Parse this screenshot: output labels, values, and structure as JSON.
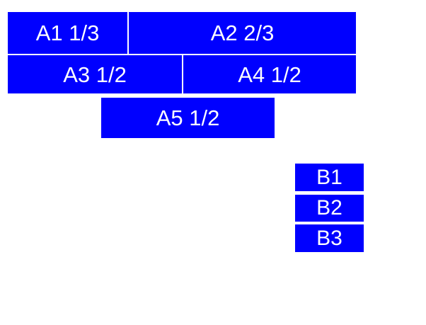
{
  "page": {
    "background_color": "#ffffff"
  },
  "colors": {
    "box_fill": "#0000ff",
    "box_text": "#ffffff"
  },
  "group_a": {
    "row1": {
      "a1": {
        "label": "A1 1/3"
      },
      "a2": {
        "label": "A2 2/3"
      }
    },
    "row2": {
      "a3": {
        "label": "A3 1/2"
      },
      "a4": {
        "label": "A4 1/2"
      }
    },
    "row3": {
      "a5": {
        "label": "A5 1/2"
      }
    }
  },
  "group_b": {
    "b1": {
      "label": "B1"
    },
    "b2": {
      "label": "B2"
    },
    "b3": {
      "label": "B3"
    }
  }
}
